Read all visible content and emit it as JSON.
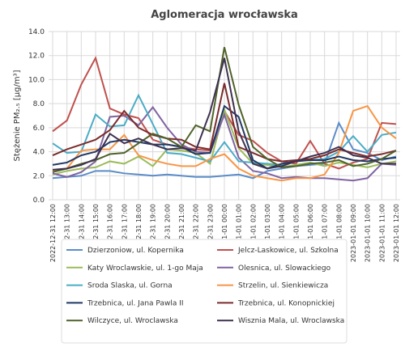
{
  "chart_data": {
    "type": "line",
    "title": "Aglomeracja wrocławska",
    "ylabel": "Stężenie PM₂.₅ [µg/m³]",
    "categories": [
      "2022-12-31 12:00",
      "2022-12-31 13:00",
      "2022-12-31 14:00",
      "2022-12-31 15:00",
      "2022-12-31 16:00",
      "2022-12-31 17:00",
      "2022-12-31 18:00",
      "2022-12-31 19:00",
      "2022-12-31 20:00",
      "2022-12-31 21:00",
      "2022-12-31 22:00",
      "2022-12-31 23:00",
      "2023-01-01 00:00",
      "2023-01-01 01:00",
      "2023-01-01 02:00",
      "2023-01-01 03:00",
      "2023-01-01 04:00",
      "2023-01-01 05:00",
      "2023-01-01 06:00",
      "2023-01-01 07:00",
      "2023-01-01 08:00",
      "2023-01-01 09:00",
      "2023-01-01 10:00",
      "2023-01-01 11:00",
      "2023-01-01 12:00"
    ],
    "ylim": [
      0,
      14
    ],
    "yticks": [
      {
        "value": 0,
        "label": "0.0"
      },
      {
        "value": 2,
        "label": "2.0"
      },
      {
        "value": 4,
        "label": "4.0"
      },
      {
        "value": 6,
        "label": "6.0"
      },
      {
        "value": 8,
        "label": "8.0"
      },
      {
        "value": 10,
        "label": "10.0"
      },
      {
        "value": 12,
        "label": "12.0"
      },
      {
        "value": 14,
        "label": "14.0"
      }
    ],
    "grid": true,
    "legend": "bottom",
    "series": [
      {
        "name": "Dzierzoniow, ul. Kopernika",
        "color": "#5b8dc9",
        "values": [
          1.8,
          1.9,
          2.0,
          2.4,
          2.4,
          2.2,
          2.1,
          2.0,
          2.1,
          2.0,
          1.9,
          1.9,
          2.0,
          2.1,
          1.8,
          2.4,
          2.6,
          2.8,
          2.9,
          3.0,
          6.4,
          4.2,
          3.9,
          3.3,
          3.6
        ]
      },
      {
        "name": "Jelcz-Laskowice, ul. Szkolna",
        "color": "#c0504d",
        "values": [
          5.7,
          6.6,
          9.6,
          11.8,
          7.6,
          7.1,
          6.8,
          5.0,
          4.6,
          4.4,
          4.2,
          4.1,
          7.4,
          5.4,
          4.9,
          3.9,
          3.2,
          3.0,
          4.9,
          3.0,
          2.6,
          3.1,
          3.4,
          6.4,
          6.3
        ]
      },
      {
        "name": "Katy Wroclawskie, ul. 1-go Maja",
        "color": "#9bbb59",
        "values": [
          2.1,
          2.4,
          2.6,
          2.7,
          3.2,
          3.0,
          3.6,
          2.8,
          4.2,
          4.1,
          3.9,
          3.0,
          7.5,
          4.3,
          3.0,
          2.9,
          2.7,
          2.9,
          3.1,
          2.8,
          3.1,
          2.9,
          2.7,
          3.0,
          3.2
        ]
      },
      {
        "name": "Olesnica, ul. Slowackiego",
        "color": "#8064a2",
        "values": [
          2.2,
          1.9,
          2.3,
          3.2,
          6.9,
          7.0,
          6.2,
          7.7,
          6.0,
          4.6,
          4.0,
          3.9,
          7.1,
          3.5,
          2.4,
          2.2,
          1.8,
          1.9,
          1.8,
          1.8,
          1.7,
          1.6,
          1.8,
          3.0,
          2.9
        ]
      },
      {
        "name": "Sroda Slaska, ul. Gorna",
        "color": "#4bacc6",
        "values": [
          4.7,
          3.9,
          4.0,
          7.1,
          6.1,
          6.2,
          8.7,
          6.3,
          3.9,
          3.8,
          3.5,
          3.2,
          4.8,
          3.2,
          3.1,
          3.0,
          2.9,
          3.3,
          3.3,
          3.4,
          4.0,
          5.3,
          4.0,
          5.4,
          5.6
        ]
      },
      {
        "name": "Strzelin, ul. Sienkiewicza",
        "color": "#f79646",
        "values": [
          2.4,
          2.6,
          4.1,
          4.2,
          4.2,
          5.4,
          3.7,
          3.3,
          3.0,
          2.8,
          2.8,
          3.4,
          3.8,
          2.6,
          2.0,
          1.8,
          1.6,
          1.8,
          1.8,
          2.1,
          3.9,
          7.4,
          7.8,
          6.0,
          5.1
        ]
      },
      {
        "name": "Trzebnica, ul. Jana Pawla II",
        "color": "#1f3864",
        "values": [
          2.9,
          3.1,
          3.7,
          4.0,
          4.8,
          5.0,
          4.8,
          4.6,
          4.6,
          4.4,
          3.8,
          3.9,
          7.8,
          6.9,
          3.3,
          2.6,
          3.0,
          3.2,
          3.3,
          3.3,
          3.6,
          3.3,
          3.2,
          3.4,
          3.5
        ]
      },
      {
        "name": "Trzebnica, ul. Konopnickiej",
        "color": "#7b2c2c",
        "values": [
          3.7,
          4.2,
          4.6,
          5.0,
          5.8,
          7.4,
          6.0,
          5.4,
          5.1,
          5.0,
          4.4,
          4.2,
          9.7,
          4.4,
          3.9,
          3.4,
          3.2,
          3.3,
          3.4,
          3.7,
          4.2,
          3.9,
          3.6,
          3.8,
          4.1
        ]
      },
      {
        "name": "Wilczyce, ul. Wroclawska",
        "color": "#4f6228",
        "values": [
          2.3,
          2.6,
          3.0,
          3.3,
          3.8,
          3.9,
          4.7,
          5.5,
          5.1,
          4.4,
          6.2,
          5.7,
          12.7,
          7.9,
          4.4,
          3.4,
          2.7,
          2.8,
          3.0,
          3.1,
          3.3,
          2.8,
          3.0,
          3.4,
          4.1
        ]
      },
      {
        "name": "Wisznia Mala, ul. Wroclawska",
        "color": "#3f3151",
        "values": [
          2.5,
          2.6,
          2.9,
          3.4,
          5.5,
          4.7,
          5.1,
          4.6,
          4.2,
          4.3,
          4.1,
          7.3,
          11.8,
          5.7,
          3.0,
          2.6,
          2.8,
          3.2,
          3.6,
          3.9,
          4.4,
          3.7,
          3.5,
          3.0,
          3.0
        ]
      }
    ]
  }
}
